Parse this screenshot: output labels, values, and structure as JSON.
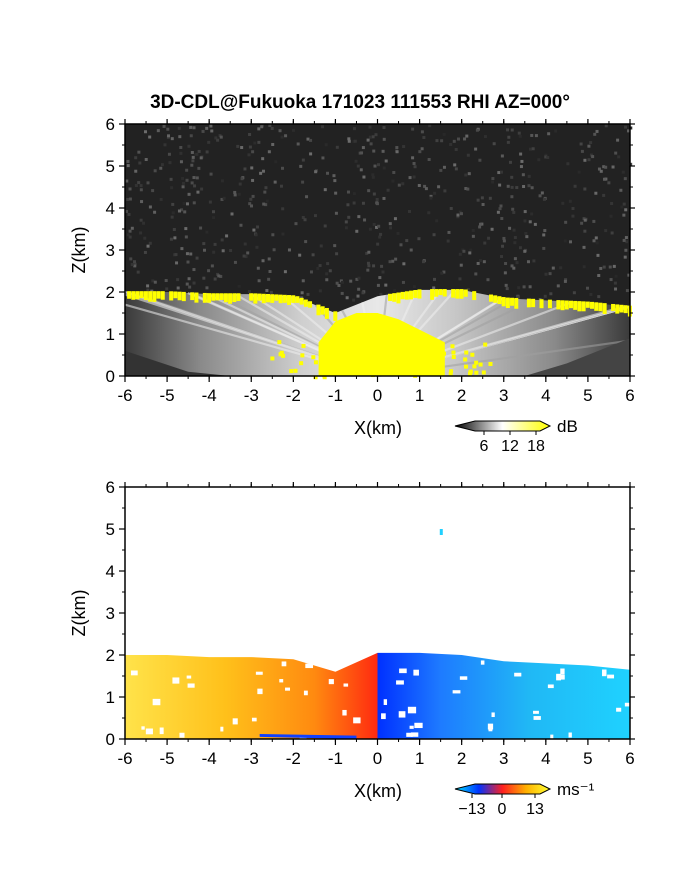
{
  "title": "3D-CDL@Fukuoka 171023 111553 RHI AZ=000°",
  "chart_data": [
    {
      "type": "heatmap",
      "panel": "backscatter",
      "xlabel": "X(km)",
      "ylabel": "Z(km)",
      "xlim": [
        -6,
        6
      ],
      "ylim": [
        0,
        6
      ],
      "x_ticks": [
        "-6",
        "-5",
        "-4",
        "-3",
        "-2",
        "-1",
        "0",
        "1",
        "2",
        "3",
        "4",
        "5",
        "6"
      ],
      "y_ticks": [
        "0",
        "1",
        "2",
        "3",
        "4",
        "5",
        "6"
      ],
      "colorbar": {
        "unit": "dB",
        "ticks": [
          "6",
          "12",
          "18"
        ],
        "colors": [
          "#000000",
          "#ffffff",
          "#ffff00"
        ]
      },
      "layer_top": [
        [
          -6,
          2.0
        ],
        [
          -5,
          2.0
        ],
        [
          -4,
          1.95
        ],
        [
          -3,
          1.95
        ],
        [
          -2,
          1.9
        ],
        [
          -1,
          1.5
        ],
        [
          0,
          1.9
        ],
        [
          1,
          2.05
        ],
        [
          2,
          2.05
        ],
        [
          3,
          1.85
        ],
        [
          4,
          1.8
        ],
        [
          5,
          1.75
        ],
        [
          6,
          1.65
        ]
      ],
      "yellow_near_field": [
        [
          -1.4,
          0.8
        ],
        [
          -1.0,
          1.3
        ],
        [
          -0.5,
          1.5
        ],
        [
          0,
          1.5
        ],
        [
          0.5,
          1.35
        ],
        [
          1.0,
          1.1
        ],
        [
          1.6,
          0.8
        ]
      ]
    },
    {
      "type": "heatmap",
      "panel": "radial_velocity",
      "xlabel": "X(km)",
      "ylabel": "Z(km)",
      "xlim": [
        -6,
        6
      ],
      "ylim": [
        0,
        6
      ],
      "x_ticks": [
        "-6",
        "-5",
        "-4",
        "-3",
        "-2",
        "-1",
        "0",
        "1",
        "2",
        "3",
        "4",
        "5",
        "6"
      ],
      "y_ticks": [
        "0",
        "1",
        "2",
        "3",
        "4",
        "5",
        "6"
      ],
      "colorbar": {
        "unit": "ms⁻¹",
        "ticks": [
          "−13",
          "0",
          "13"
        ],
        "colors": [
          "#00e5ff",
          "#0033ff",
          "#ff2020",
          "#ffb000",
          "#ffff30"
        ]
      },
      "layer_top": [
        [
          -6,
          2.0
        ],
        [
          -5,
          2.0
        ],
        [
          -4,
          1.95
        ],
        [
          -3,
          1.95
        ],
        [
          -2,
          1.9
        ],
        [
          -1,
          1.6
        ],
        [
          0,
          2.05
        ],
        [
          1,
          2.05
        ],
        [
          2,
          2.0
        ],
        [
          3,
          1.85
        ],
        [
          4,
          1.8
        ],
        [
          5,
          1.75
        ],
        [
          6,
          1.65
        ]
      ],
      "velocity_samples": [
        [
          -5,
          11
        ],
        [
          -3,
          9
        ],
        [
          -1.5,
          6
        ],
        [
          -0.3,
          2
        ],
        [
          0.3,
          -3
        ],
        [
          1,
          -7
        ],
        [
          3,
          -10
        ],
        [
          5,
          -12
        ]
      ]
    }
  ]
}
